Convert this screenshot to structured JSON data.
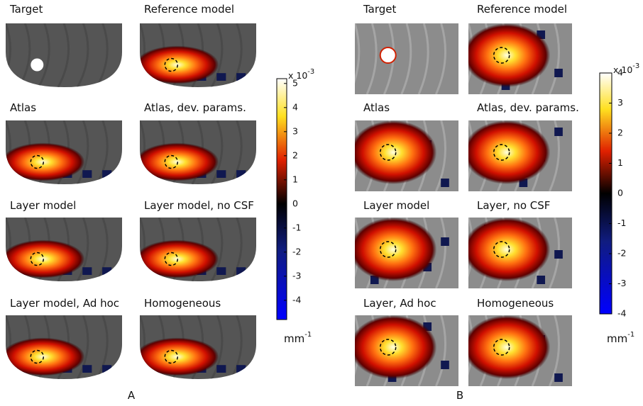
{
  "panels": [
    {
      "label": "A",
      "images": [
        {
          "title": "Target"
        },
        {
          "title": "Reference model"
        },
        {
          "title": "Atlas"
        },
        {
          "title": "Atlas, dev. params."
        },
        {
          "title": "Layer model"
        },
        {
          "title": "Layer model, no CSF"
        },
        {
          "title": "Layer model, Ad hoc"
        },
        {
          "title": "Homogeneous"
        }
      ],
      "colorbar": {
        "exponent_label": "x 10",
        "exponent": "-3",
        "unit": "mm",
        "unit_exponent": "-1",
        "lim": [
          -4.8,
          5.2
        ],
        "ticks": [
          -4,
          -3,
          -2,
          -1,
          0,
          1,
          2,
          3,
          4,
          5
        ]
      }
    },
    {
      "label": "B",
      "images": [
        {
          "title": "Target"
        },
        {
          "title": "Reference model"
        },
        {
          "title": "Atlas"
        },
        {
          "title": "Atlas, dev. params."
        },
        {
          "title": "Layer model"
        },
        {
          "title": "Layer, no CSF"
        },
        {
          "title": "Layer, Ad hoc"
        },
        {
          "title": "Homogeneous"
        }
      ],
      "colorbar": {
        "exponent_label": "x 10",
        "exponent": "-3",
        "unit": "mm",
        "unit_exponent": "-1",
        "lim": [
          -4,
          4
        ],
        "ticks": [
          -4,
          -3,
          -2,
          -1,
          0,
          1,
          2,
          3,
          4
        ]
      }
    }
  ]
}
